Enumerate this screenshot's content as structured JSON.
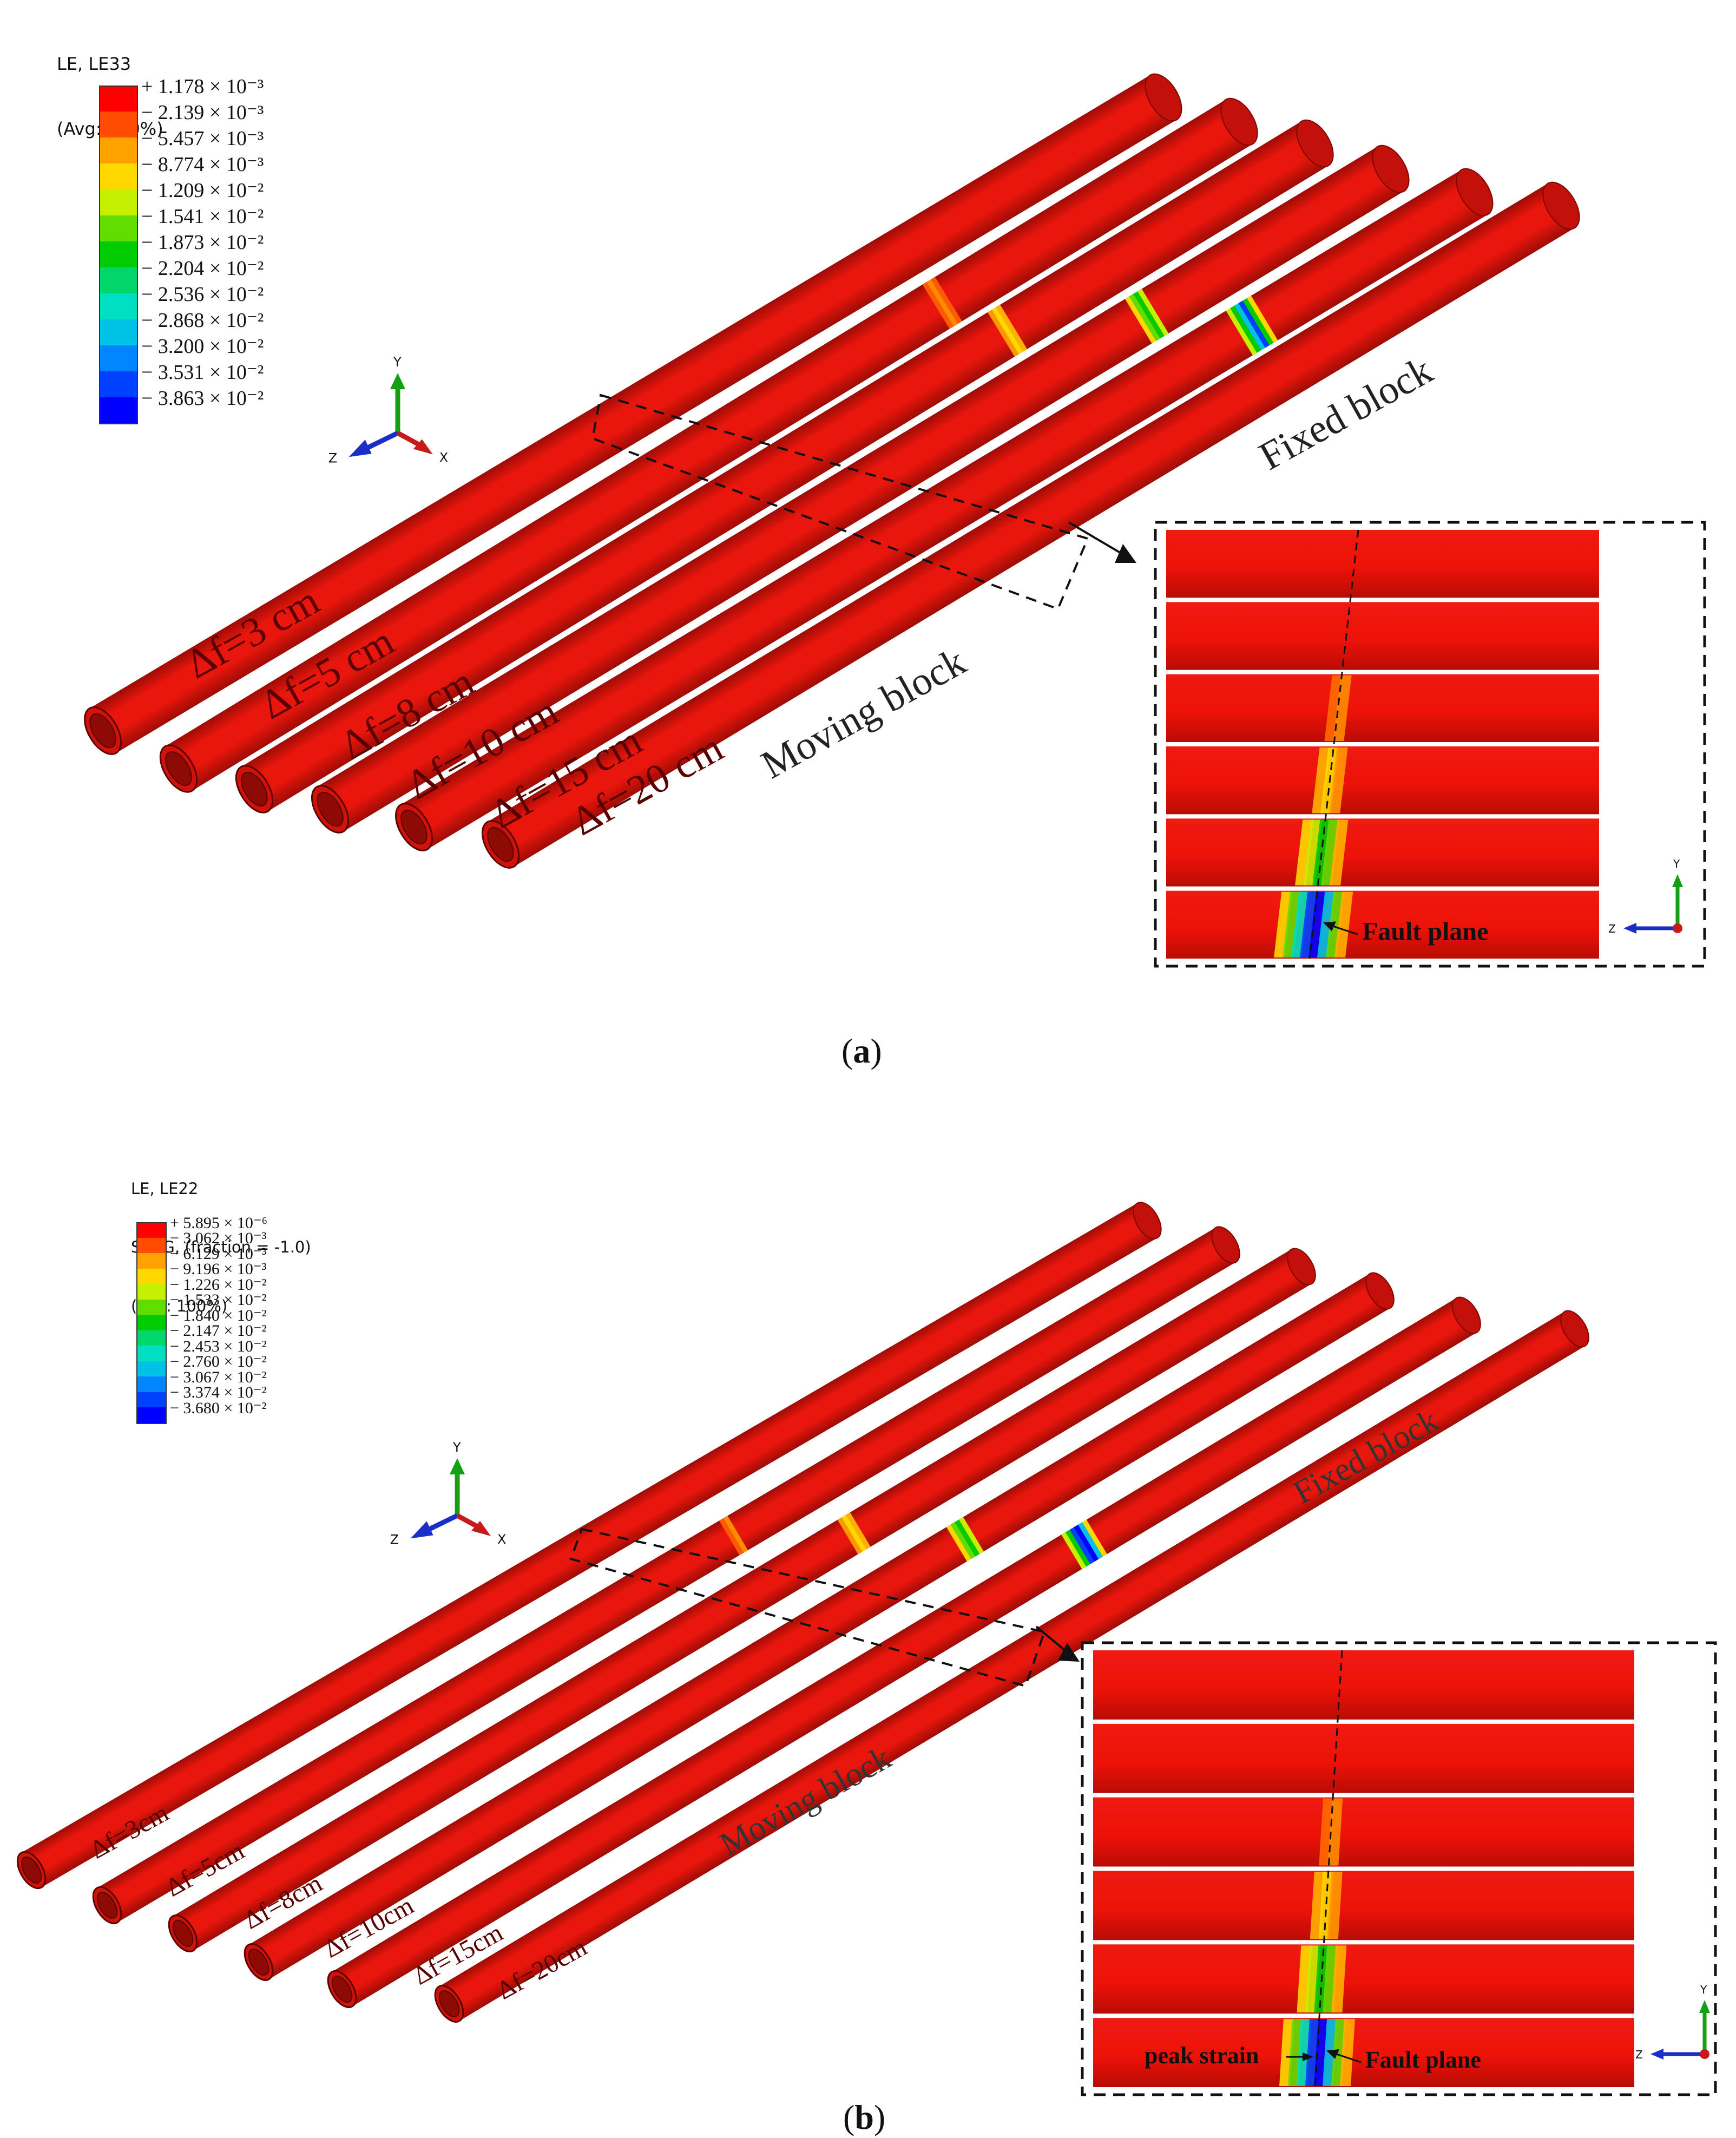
{
  "panel_a": {
    "legend": {
      "title_lines": [
        "LE, LE33",
        "(Avg: 100%)"
      ],
      "entries": [
        "+ 1.178 × 10⁻³",
        "− 2.139 × 10⁻³",
        "− 5.457 × 10⁻³",
        "− 8.774 × 10⁻³",
        "− 1.209 × 10⁻²",
        "− 1.541 × 10⁻²",
        "− 1.873 × 10⁻²",
        "− 2.204 × 10⁻²",
        "− 2.536 × 10⁻²",
        "− 2.868 × 10⁻²",
        "− 3.200 × 10⁻²",
        "− 3.531 × 10⁻²",
        "− 3.863 × 10⁻²"
      ]
    },
    "pipe_labels": [
      "Δf=3 cm",
      "Δf=5 cm",
      "Δf=8 cm",
      "Δf=10 cm",
      "Δf=15 cm",
      "Δf=20 cm"
    ],
    "block_labels": {
      "fixed": "Fixed block",
      "moving": "Moving block"
    },
    "inset": {
      "fault_label": "Fault plane"
    },
    "axes": {
      "y": "Y",
      "z": "Z",
      "x": "X"
    },
    "caption": "a"
  },
  "panel_b": {
    "legend": {
      "title_lines": [
        "LE, LE22",
        "SNEG, (fraction = -1.0)",
        "(Avg: 100%)"
      ],
      "entries": [
        "+ 5.895 × 10⁻⁶",
        "− 3.062 × 10⁻³",
        "− 6.129 × 10⁻³",
        "− 9.196 × 10⁻³",
        "− 1.226 × 10⁻²",
        "− 1.533 × 10⁻²",
        "− 1.840 × 10⁻²",
        "− 2.147 × 10⁻²",
        "− 2.453 × 10⁻²",
        "− 2.760 × 10⁻²",
        "− 3.067 × 10⁻²",
        "− 3.374 × 10⁻²",
        "− 3.680 × 10⁻²"
      ]
    },
    "pipe_labels": [
      "Δf=3cm",
      "Δf=5cm",
      "Δf=8cm",
      "Δf=10cm",
      "Δf=15cm",
      "Δf=20cm"
    ],
    "block_labels": {
      "fixed": "Fixed block",
      "moving": "Moving block"
    },
    "inset": {
      "fault_label": "Fault plane",
      "peak_label": "peak strain"
    },
    "axes": {
      "y": "Y",
      "z": "Z",
      "x": "X"
    },
    "caption": "b"
  },
  "colors": {
    "pipe": "#e8160c",
    "pipe_dark": "#9e0c06",
    "legend_scale": [
      "#ff0000",
      "#ff4c00",
      "#ffa200",
      "#ffd800",
      "#c5f000",
      "#62dd00",
      "#00cc00",
      "#00d66a",
      "#00e0c0",
      "#00c2e6",
      "#0086ff",
      "#0040ff",
      "#0000ff"
    ]
  }
}
